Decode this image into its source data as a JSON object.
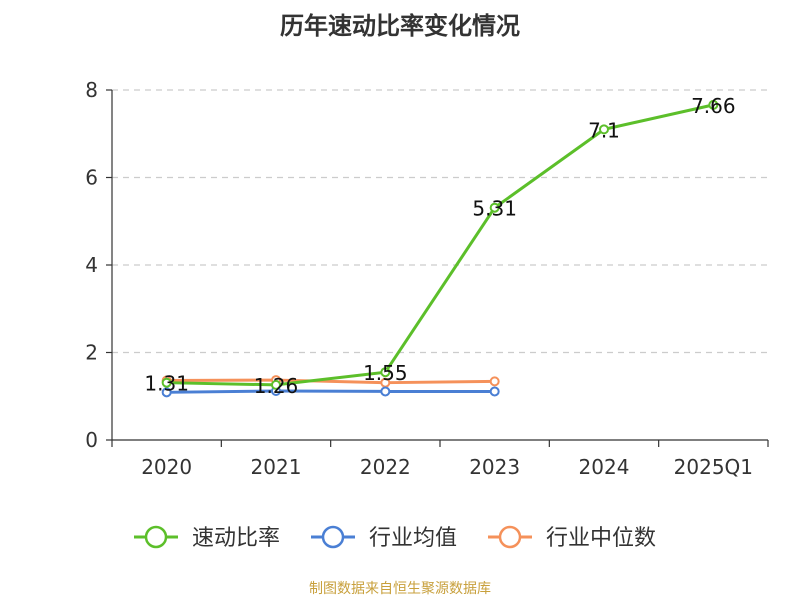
{
  "chart_data": {
    "type": "line",
    "title": "历年速动比率变化情况",
    "categories": [
      "2020",
      "2021",
      "2022",
      "2023",
      "2024",
      "2025Q1"
    ],
    "yticks": [
      "0",
      "2",
      "4",
      "6",
      "8"
    ],
    "ylim": [
      0,
      8
    ],
    "grid": true,
    "legend_position": "bottom",
    "series": [
      {
        "name": "速动比率",
        "color": "#5cbf2a",
        "values": [
          1.31,
          1.26,
          1.55,
          5.31,
          7.1,
          7.66
        ],
        "labels": [
          "1.31",
          "1.26",
          "1.55",
          "5.31",
          "7.1",
          "7.66"
        ]
      },
      {
        "name": "行业均值",
        "color": "#4a7fd4",
        "values": [
          1.09,
          1.12,
          1.11,
          1.11,
          null,
          null
        ],
        "labels": []
      },
      {
        "name": "行业中位数",
        "color": "#f5915a",
        "values": [
          1.36,
          1.37,
          1.31,
          1.34,
          null,
          null
        ],
        "labels": []
      }
    ]
  },
  "footer": {
    "source": "制图数据来自恒生聚源数据库"
  }
}
